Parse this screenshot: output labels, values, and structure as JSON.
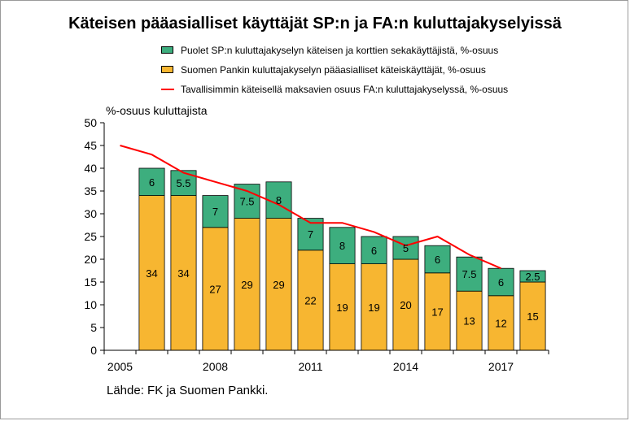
{
  "title": "Käteisen pääasialliset käyttäjät SP:n ja FA:n kuluttajakyselyissä",
  "legend": [
    {
      "label": "Puolet SP:n kuluttajakyselyn käteisen ja korttien sekakäyttäjistä, %-osuus",
      "kind": "box",
      "color": "#3dae7e"
    },
    {
      "label": "Suomen Pankin kuluttajakyselyn pääasialliset käteiskäyttäjät, %-osuus",
      "kind": "box",
      "color": "#f7b631"
    },
    {
      "label": "Tavallisimmin käteisellä maksavien osuus FA:n kuluttajakyselyssä, %-osuus",
      "kind": "line",
      "color": "#ff0000"
    }
  ],
  "unit_label": "%-osuus kuluttajista",
  "source": "Lähde: FK ja Suomen Pankki.",
  "chart_data": {
    "type": "bar",
    "stacked": true,
    "x": [
      2005,
      2006,
      2007,
      2008,
      2009,
      2010,
      2011,
      2012,
      2013,
      2014,
      2015,
      2016,
      2017,
      2018
    ],
    "x_tick_labels": [
      "2005",
      "2008",
      "2011",
      "2014",
      "2017"
    ],
    "x_tick_values": [
      2005,
      2008,
      2011,
      2014,
      2017
    ],
    "ylim": [
      0,
      50
    ],
    "y_ticks": [
      0,
      5,
      10,
      15,
      20,
      25,
      30,
      35,
      40,
      45,
      50
    ],
    "grid": false,
    "series": [
      {
        "name": "Suomen Pankin kuluttajakyselyn pääasialliset käteiskäyttäjät, %-osuus",
        "type": "bar",
        "color": "#f7b631",
        "values": [
          null,
          34,
          34,
          27,
          29,
          29,
          22,
          19,
          19,
          20,
          17,
          13,
          12,
          15
        ],
        "labels": [
          "",
          "34",
          "34",
          "27",
          "29",
          "29",
          "22",
          "19",
          "19",
          "20",
          "17",
          "13",
          "12",
          "15"
        ]
      },
      {
        "name": "Puolet SP:n kuluttajakyselyn käteisen ja korttien sekakäyttäjistä, %-osuus",
        "type": "bar",
        "color": "#3dae7e",
        "values": [
          null,
          6,
          5.5,
          7,
          7.5,
          8,
          7,
          8,
          6,
          5,
          6,
          7.5,
          6,
          2.5
        ],
        "labels": [
          "",
          "6",
          "5.5",
          "7",
          "7.5",
          "8",
          "7",
          "8",
          "6",
          "5",
          "6",
          "7.5",
          "6",
          "2.5"
        ]
      },
      {
        "name": "Tavallisimmin käteisellä maksavien osuus FA:n kuluttajakyselyssä, %-osuus",
        "type": "line",
        "color": "#ff0000",
        "values": [
          45,
          43,
          39,
          37,
          35,
          32,
          28,
          28,
          26,
          23,
          25,
          21,
          18,
          null
        ]
      }
    ]
  }
}
